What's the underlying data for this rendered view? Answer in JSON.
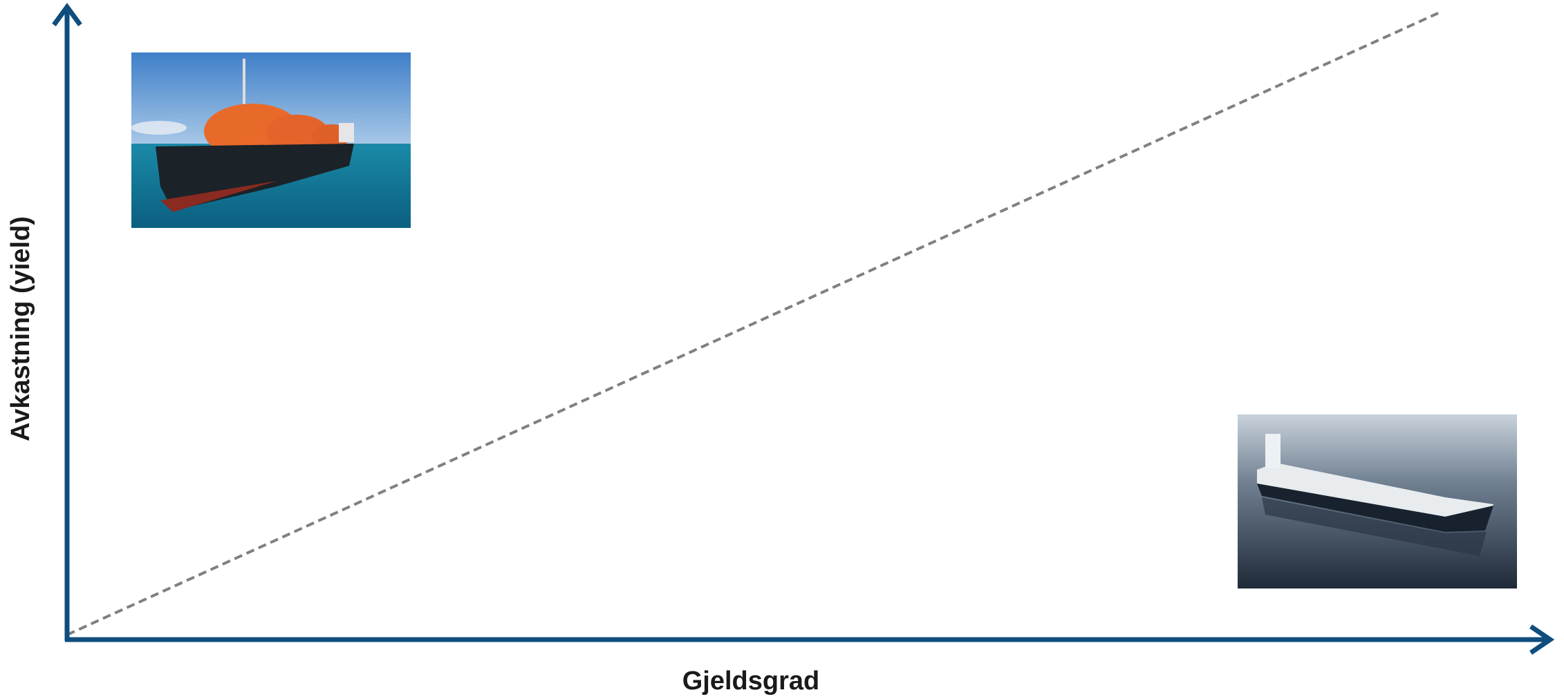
{
  "diagram": {
    "x_axis_label": "Gjeldsgrad",
    "y_axis_label": "Avkastning (yield)"
  }
}
